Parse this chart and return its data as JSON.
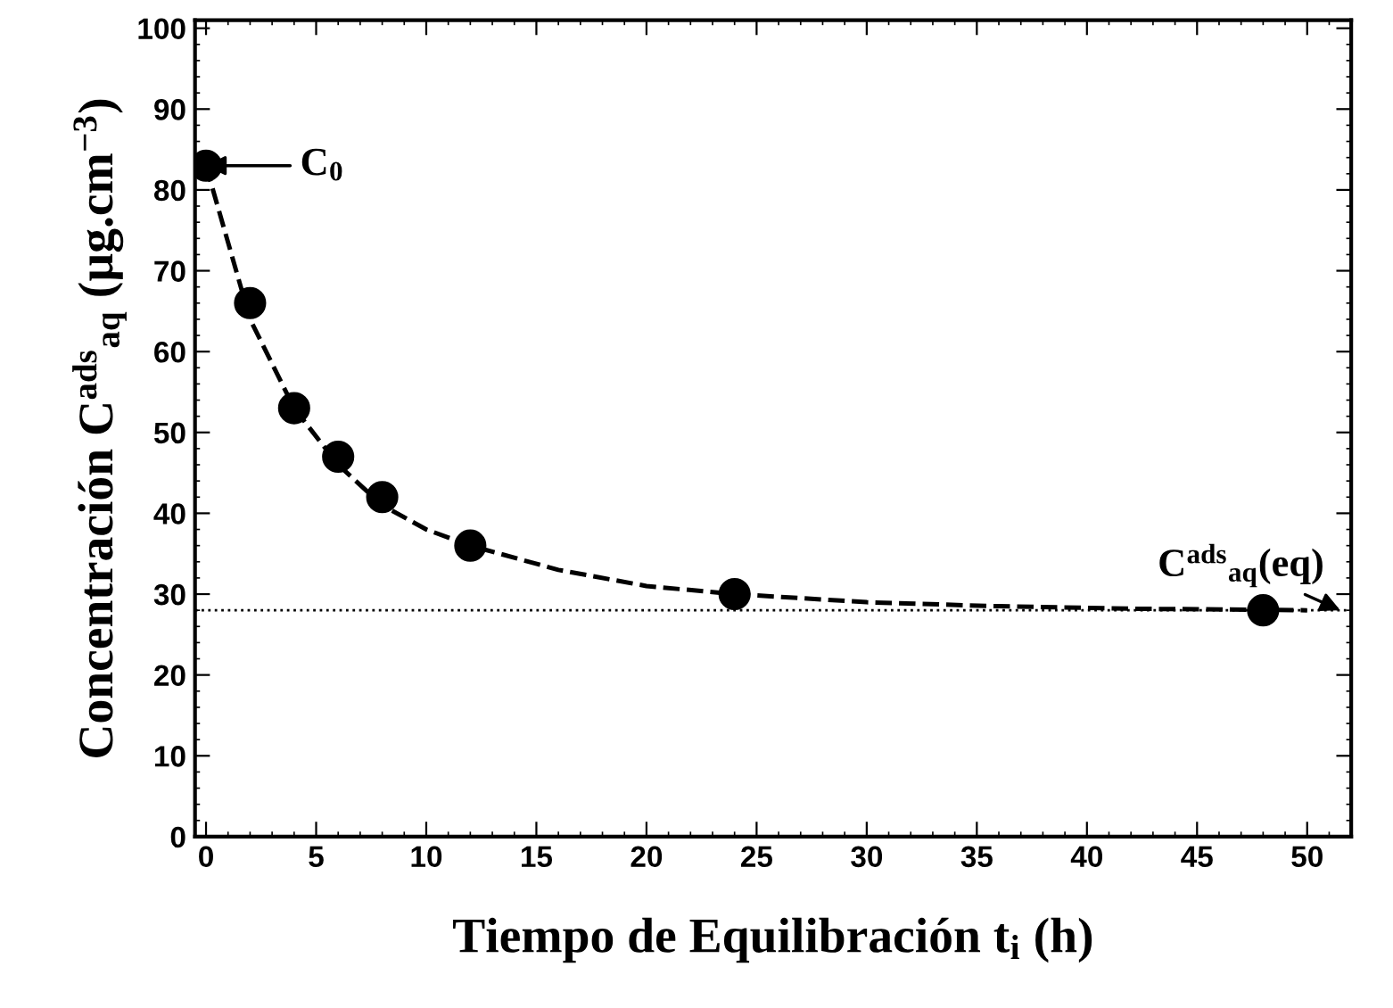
{
  "chart_data": {
    "type": "scatter",
    "xlabel": "Tiempo de Equilibración t$_{i}$ (h)",
    "ylabel": "Concentración C$^{ads}$$_{aq}$ (µg.cm$^{−3}$)",
    "xlim": [
      -0.5,
      52
    ],
    "ylim": [
      0,
      101
    ],
    "xticks": [
      0,
      5,
      10,
      15,
      20,
      25,
      30,
      35,
      40,
      45,
      50
    ],
    "yticks": [
      0,
      10,
      20,
      30,
      40,
      50,
      60,
      70,
      80,
      90,
      100
    ],
    "grid": false,
    "legend": false,
    "series": [
      {
        "type": "line",
        "color": "#000000",
        "line_style": "dashed",
        "marker": "none",
        "x": [
          0,
          2,
          4,
          6,
          8,
          10,
          12,
          16,
          20,
          24,
          30,
          36,
          42,
          50
        ],
        "values": [
          83,
          64,
          53,
          46,
          41,
          38,
          36,
          33,
          31,
          30,
          29,
          28.5,
          28.2,
          28
        ]
      },
      {
        "color": "#000000",
        "marker": "circle",
        "x": [
          0,
          2,
          4,
          6,
          8,
          12,
          24,
          48
        ],
        "values": [
          83,
          66,
          53,
          47,
          42,
          36,
          30,
          28
        ]
      }
    ],
    "ref_lines": [
      {
        "axis": "y",
        "value": 28,
        "color": "#000000",
        "line_style": "dotted"
      }
    ],
    "annotations": [
      {
        "text": "C$_{0}$",
        "x": 0,
        "y": 83
      },
      {
        "text": "C$^{ads}$$_{aq}$(eq)",
        "x": 51.5,
        "y": 28
      }
    ]
  }
}
